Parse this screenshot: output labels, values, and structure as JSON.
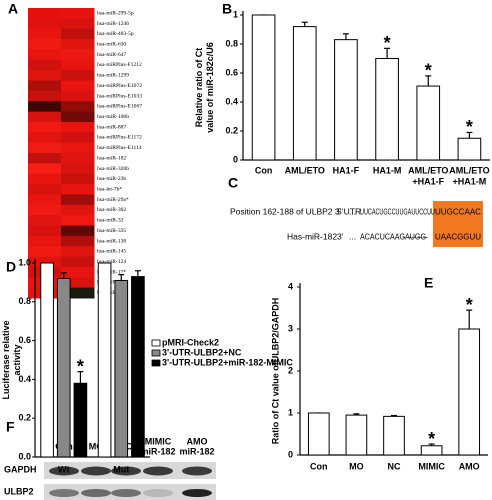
{
  "panels": [
    "A",
    "B",
    "C",
    "D",
    "E",
    "F"
  ],
  "heatmap": {
    "labels": [
      "hsa-miR-299-5p",
      "hsa-miR-1246",
      "hsa-miR-483-5p",
      "hsa-miR-630",
      "hsa-miR-647",
      "hsa-miRPlus-F1212",
      "hsa-miR-1299",
      "hsa-miRPlus-E1072",
      "hsa-miRPlus-E1033",
      "hsa-miRPlus-E1067",
      "hsa-miR-106b",
      "hsa-miR-887",
      "hsa-miRPlus-E1172",
      "hsa-miRPlus-E1114",
      "hsa-miR-182",
      "hsa-miR-320b",
      "hsa-miR-23b",
      "hsa-let-7b*",
      "hsa-miR-29a*",
      "hsa-miR-302",
      "hsa-miR-32",
      "hsa-miR-335",
      "hsa-miR-138",
      "hsa-miR-145",
      "hsa-miR-124",
      "hsa-miR-17*",
      "hsa-miR-15a",
      "hsa-miR-144"
    ],
    "colors": [
      [
        "#e8100e",
        "#e8130f"
      ],
      [
        "#e01210",
        "#d8120e"
      ],
      [
        "#e81510",
        "#c0100c"
      ],
      [
        "#f01a12",
        "#e01510"
      ],
      [
        "#e81410",
        "#f01812"
      ],
      [
        "#d0120e",
        "#e8140f"
      ],
      [
        "#e01510",
        "#c8100d"
      ],
      [
        "#b00e0b",
        "#e8140f"
      ],
      [
        "#c8100c",
        "#d8120e"
      ],
      [
        "#400604",
        "#900c09"
      ],
      [
        "#d8120e",
        "#700907"
      ],
      [
        "#f01a12",
        "#e8140f"
      ],
      [
        "#e01510",
        "#d0120e"
      ],
      [
        "#f01c14",
        "#e8160f"
      ],
      [
        "#c01010",
        "#e01410"
      ],
      [
        "#f81e14",
        "#d8120e"
      ],
      [
        "#e8140f",
        "#c8100c"
      ],
      [
        "#d8120e",
        "#e8140f"
      ],
      [
        "#e81510",
        "#a00d0a"
      ],
      [
        "#f01a12",
        "#e01510"
      ],
      [
        "#e01410",
        "#f01812"
      ],
      [
        "#d8120e",
        "#600806"
      ],
      [
        "#e8140f",
        "#b00e0b"
      ],
      [
        "#f01a12",
        "#e01510"
      ],
      [
        "#e01510",
        "#c8100c"
      ],
      [
        "#d0120e",
        "#e8140f"
      ],
      [
        "#e8140f",
        "#d8120e"
      ],
      [
        "#e01410",
        "#1a1a10"
      ]
    ]
  },
  "alignment": {
    "rows": [
      {
        "label": "Position 162-188 of ULBP2 3' UTR",
        "end": "5'",
        "dots": "...",
        "sequence": "UUCACUGCCUUGAUUCCUU",
        "gap": "",
        "site": "UUGCCAAC"
      },
      {
        "label": "Has-miR-182",
        "end": "3'",
        "dots": "...",
        "sequence": "ACACUCAAGAUGG",
        "gap": "---------",
        "site": "UAACGGUU"
      }
    ],
    "highlight_color": "#f07820"
  },
  "blot": {
    "lanes": [
      [
        "Con"
      ],
      [
        "MO"
      ],
      [
        "NC"
      ],
      [
        "MIMIC",
        "miR-182"
      ],
      [
        "AMO",
        "miR-182"
      ]
    ],
    "rows": [
      "GAPDH",
      "ULBP2"
    ]
  },
  "chart_data": [
    {
      "type": "bar",
      "y_label": [
        "Relative ratio of Ct",
        "value of miR-182c/U6"
      ],
      "categories": [
        [
          "Con"
        ],
        [
          "AML/ETO"
        ],
        [
          "HA1-F"
        ],
        [
          "HA1-M"
        ],
        [
          "AML/ETO",
          "+HA1-F"
        ],
        [
          "AML/ETO",
          "+HA1-M"
        ]
      ],
      "values": [
        1.0,
        0.92,
        0.83,
        0.7,
        0.51,
        0.15
      ],
      "errors": [
        0,
        0.03,
        0.04,
        0.07,
        0.07,
        0.04
      ],
      "value_markers": [
        null,
        null,
        null,
        "*",
        "*",
        "*"
      ],
      "color": "#ffffff",
      "ylim": [
        0,
        1
      ],
      "yticks": [
        0,
        0.2,
        0.4,
        0.6,
        0.8,
        1
      ]
    },
    {
      "type": "bar",
      "y_label": [
        "Luciferase relative",
        "activity"
      ],
      "categories": [
        [
          "Wt"
        ],
        [
          "Mut"
        ]
      ],
      "series": [
        {
          "name": "pMRI-Check2",
          "color": "#ffffff",
          "values": [
            1.0,
            1.0
          ],
          "errors": [
            0,
            0
          ],
          "value_markers": [
            null,
            null
          ]
        },
        {
          "name": "3'-UTR-ULBP2+NC",
          "color": "#888888",
          "values": [
            0.92,
            0.91
          ],
          "errors": [
            0.03,
            0.03
          ],
          "value_markers": [
            null,
            null
          ]
        },
        {
          "name": "3'-UTR-ULBP2+miR-182-MIMIC",
          "color": "#000000",
          "values": [
            0.38,
            0.93
          ],
          "errors": [
            0.06,
            0.03
          ],
          "value_markers": [
            "*",
            null
          ]
        }
      ],
      "legend": "right",
      "ylim": [
        0,
        1
      ],
      "yticks": [
        {
          "value": 0,
          "label": "0.0"
        },
        0.2,
        0.4,
        0.6,
        0.8,
        {
          "value": 1,
          "label": "1.0"
        }
      ]
    },
    {
      "type": "bar",
      "y_label": [
        "Ratio of Ct value ofULBP2/GAPDH"
      ],
      "categories": [
        [
          "Con"
        ],
        [
          "MO"
        ],
        [
          "NC"
        ],
        [
          "MIMIC"
        ],
        [
          "AMO"
        ]
      ],
      "values": [
        1.0,
        0.95,
        0.92,
        0.22,
        3.0
      ],
      "errors": [
        0,
        0.03,
        0.02,
        0.04,
        0.45
      ],
      "value_markers": [
        null,
        null,
        null,
        "*",
        "*"
      ],
      "color": "#ffffff",
      "ylim": [
        0,
        4
      ],
      "yticks": [
        0,
        1,
        2,
        3,
        4
      ]
    }
  ]
}
